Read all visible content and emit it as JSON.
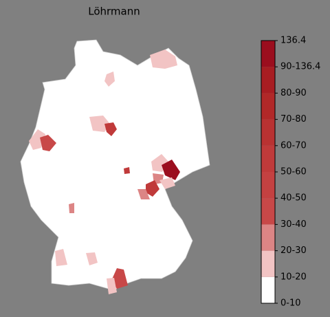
{
  "title": "Löhrmann",
  "legend": {
    "labels": [
      "0-10",
      "10-20",
      "20-30",
      "30-40",
      "40-50",
      "50-60",
      "60-70",
      "70-80",
      "80-90",
      "90-136.4",
      "136.4"
    ],
    "colors": [
      "#ffffff",
      "#f2c4c4",
      "#dc8585",
      "#c84848",
      "#c44141",
      "#c03a3a",
      "#b93232",
      "#b12828",
      "#a81d22",
      "#9b0e1e"
    ]
  }
}
